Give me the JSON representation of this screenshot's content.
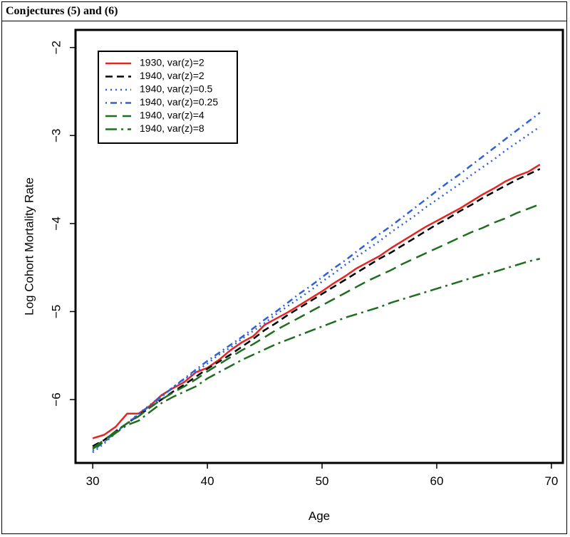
{
  "header": {
    "title": "Conjectures (5) and (6)"
  },
  "chart_data": {
    "type": "line",
    "title": "",
    "xlabel": "Age",
    "ylabel": "Log Cohort Mortality Rate",
    "xlim": [
      28.5,
      71
    ],
    "ylim": [
      -6.72,
      -1.8
    ],
    "xticks": [
      30,
      40,
      50,
      60,
      70
    ],
    "yticks": [
      -2,
      -3,
      -4,
      -5,
      -6
    ],
    "ytick_labels": [
      "−2",
      "−3",
      "−4",
      "−5",
      "−6"
    ],
    "grid": false,
    "legend_position": "top-left",
    "x": [
      30,
      31,
      32,
      33,
      34,
      35,
      36,
      37,
      38,
      39,
      40,
      41,
      42,
      43,
      44,
      45,
      46,
      47,
      48,
      49,
      50,
      51,
      52,
      53,
      54,
      55,
      56,
      57,
      58,
      59,
      60,
      61,
      62,
      63,
      64,
      65,
      66,
      67,
      68,
      69
    ],
    "series": [
      {
        "name": "1930, var(z)=2",
        "color": "#e8231f",
        "dash": "solid",
        "values": [
          -6.44,
          -6.4,
          -6.31,
          -6.16,
          -6.16,
          -6.07,
          -5.95,
          -5.87,
          -5.8,
          -5.69,
          -5.64,
          -5.55,
          -5.44,
          -5.35,
          -5.28,
          -5.15,
          -5.08,
          -5.01,
          -4.93,
          -4.85,
          -4.77,
          -4.68,
          -4.6,
          -4.51,
          -4.44,
          -4.37,
          -4.28,
          -4.2,
          -4.12,
          -4.04,
          -3.97,
          -3.9,
          -3.83,
          -3.75,
          -3.67,
          -3.6,
          -3.52,
          -3.46,
          -3.41,
          -3.33
        ]
      },
      {
        "name": "1940, var(z)=2",
        "color": "#000000",
        "dash": "dashed",
        "values": [
          -6.53,
          -6.46,
          -6.36,
          -6.27,
          -6.18,
          -6.09,
          -6.0,
          -5.91,
          -5.83,
          -5.74,
          -5.65,
          -5.57,
          -5.49,
          -5.4,
          -5.31,
          -5.21,
          -5.13,
          -5.04,
          -4.96,
          -4.88,
          -4.8,
          -4.72,
          -4.64,
          -4.56,
          -4.48,
          -4.4,
          -4.33,
          -4.25,
          -4.17,
          -4.09,
          -4.01,
          -3.94,
          -3.86,
          -3.79,
          -3.71,
          -3.64,
          -3.57,
          -3.5,
          -3.44,
          -3.38
        ]
      },
      {
        "name": "1940, var(z)=0.5",
        "color": "#2f5fdc",
        "dash": "dotted",
        "values": [
          -6.6,
          -6.5,
          -6.38,
          -6.27,
          -6.16,
          -6.06,
          -5.96,
          -5.86,
          -5.77,
          -5.68,
          -5.59,
          -5.49,
          -5.41,
          -5.31,
          -5.22,
          -5.13,
          -5.03,
          -4.94,
          -4.85,
          -4.76,
          -4.66,
          -4.57,
          -4.47,
          -4.38,
          -4.29,
          -4.2,
          -4.1,
          -4.01,
          -3.92,
          -3.82,
          -3.73,
          -3.64,
          -3.55,
          -3.45,
          -3.36,
          -3.27,
          -3.17,
          -3.08,
          -2.99,
          -2.9
        ]
      },
      {
        "name": "1940, var(z)=0.25",
        "color": "#2f5fdc",
        "dash": "dashdot",
        "values": [
          -6.58,
          -6.48,
          -6.37,
          -6.27,
          -6.17,
          -6.07,
          -5.97,
          -5.86,
          -5.76,
          -5.66,
          -5.56,
          -5.47,
          -5.38,
          -5.29,
          -5.19,
          -5.09,
          -5.0,
          -4.9,
          -4.8,
          -4.71,
          -4.61,
          -4.51,
          -4.42,
          -4.32,
          -4.22,
          -4.12,
          -4.03,
          -3.93,
          -3.83,
          -3.73,
          -3.63,
          -3.53,
          -3.44,
          -3.34,
          -3.24,
          -3.14,
          -3.04,
          -2.94,
          -2.84,
          -2.74
        ]
      },
      {
        "name": "1940, var(z)=4",
        "color": "#1f6e1f",
        "dash": "longdash",
        "values": [
          -6.55,
          -6.46,
          -6.36,
          -6.27,
          -6.19,
          -6.09,
          -6.0,
          -5.92,
          -5.85,
          -5.77,
          -5.68,
          -5.6,
          -5.52,
          -5.44,
          -5.37,
          -5.29,
          -5.21,
          -5.14,
          -5.07,
          -5.0,
          -4.93,
          -4.86,
          -4.79,
          -4.72,
          -4.65,
          -4.59,
          -4.53,
          -4.46,
          -4.4,
          -4.34,
          -4.28,
          -4.22,
          -4.16,
          -4.1,
          -4.05,
          -3.99,
          -3.94,
          -3.88,
          -3.83,
          -3.78
        ]
      },
      {
        "name": "1940, var(z)=8",
        "color": "#1f6e1f",
        "dash": "longdashdot",
        "values": [
          -6.56,
          -6.48,
          -6.38,
          -6.29,
          -6.24,
          -6.14,
          -6.04,
          -5.97,
          -5.91,
          -5.85,
          -5.76,
          -5.69,
          -5.62,
          -5.55,
          -5.49,
          -5.43,
          -5.37,
          -5.32,
          -5.27,
          -5.22,
          -5.17,
          -5.12,
          -5.07,
          -5.03,
          -4.99,
          -4.95,
          -4.9,
          -4.86,
          -4.82,
          -4.78,
          -4.74,
          -4.7,
          -4.66,
          -4.62,
          -4.58,
          -4.55,
          -4.51,
          -4.47,
          -4.43,
          -4.4
        ]
      }
    ]
  }
}
